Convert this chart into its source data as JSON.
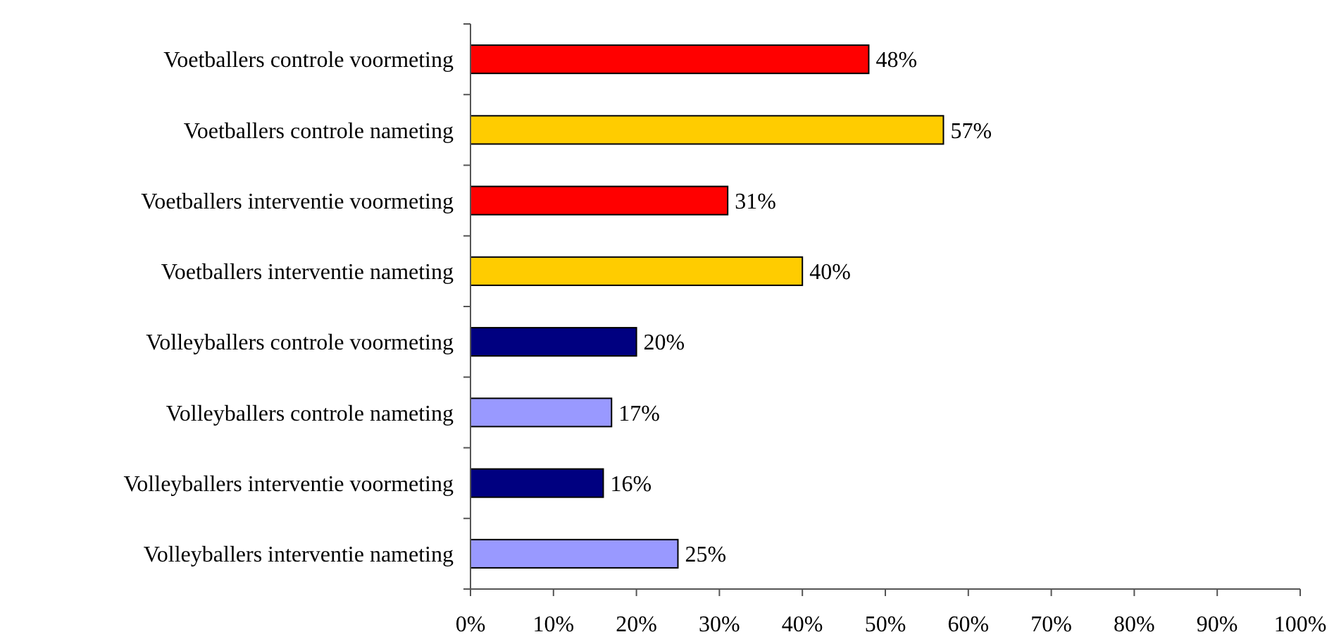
{
  "chart_data": {
    "type": "bar",
    "orientation": "horizontal",
    "categories": [
      "Voetballers controle voormeting",
      "Voetballers controle nameting",
      "Voetballers interventie voormeting",
      "Voetballers interventie nameting",
      "Volleyballers controle voormeting",
      "Volleyballers controle nameting",
      "Volleyballers interventie voormeting",
      "Volleyballers interventie nameting"
    ],
    "values": [
      48,
      57,
      31,
      40,
      20,
      17,
      16,
      25
    ],
    "colors": [
      "#ff0000",
      "#ffcc00",
      "#ff0000",
      "#ffcc00",
      "#000080",
      "#9999ff",
      "#000080",
      "#9999ff"
    ],
    "value_labels": [
      "48%",
      "57%",
      "31%",
      "40%",
      "20%",
      "17%",
      "16%",
      "25%"
    ],
    "xlim": [
      0,
      100
    ],
    "xticks": [
      {
        "value": 0,
        "label": "0%"
      },
      {
        "value": 10,
        "label": "10%"
      },
      {
        "value": 20,
        "label": "20%"
      },
      {
        "value": 30,
        "label": "30%"
      },
      {
        "value": 40,
        "label": "40%"
      },
      {
        "value": 50,
        "label": "50%"
      },
      {
        "value": 60,
        "label": "60%"
      },
      {
        "value": 70,
        "label": "70%"
      },
      {
        "value": 80,
        "label": "80%"
      },
      {
        "value": 90,
        "label": "90%"
      },
      {
        "value": 100,
        "label": "100%"
      }
    ]
  }
}
